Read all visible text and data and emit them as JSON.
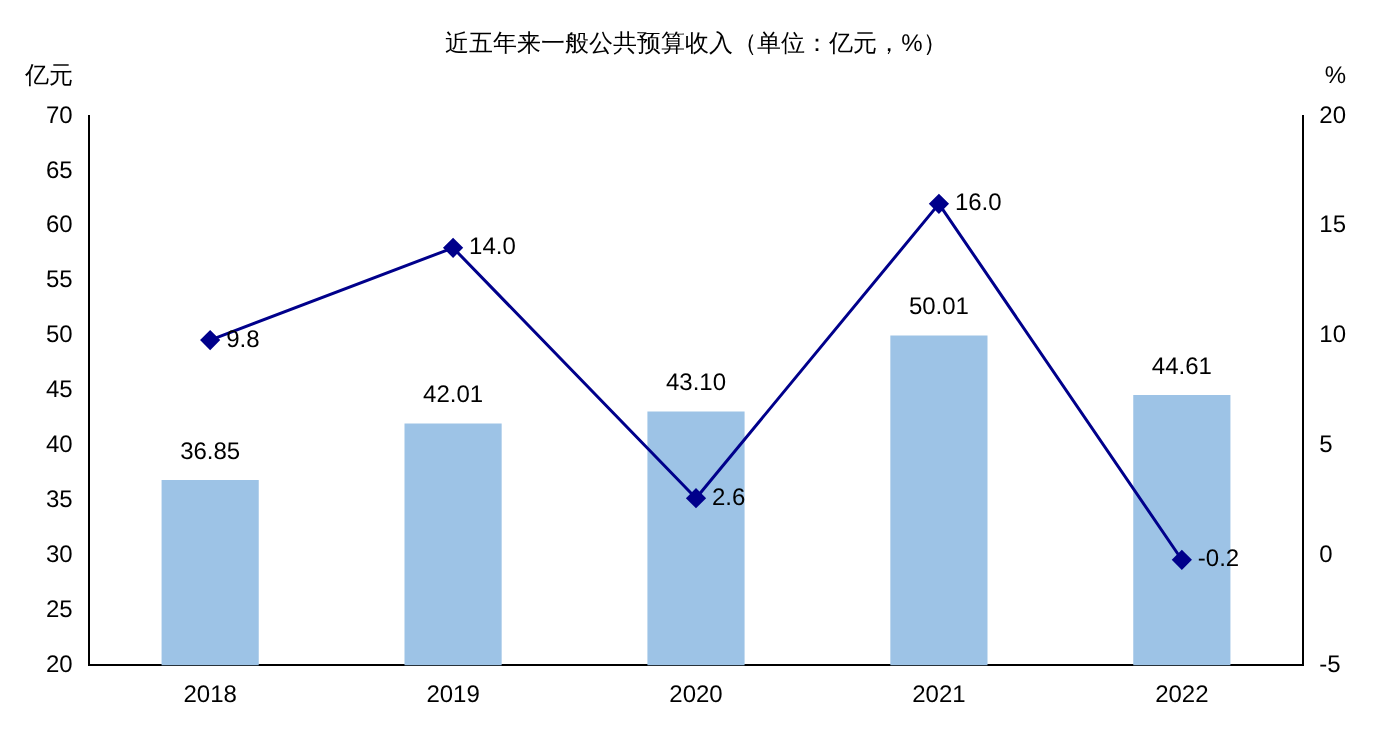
{
  "chart_data": {
    "type": "bar",
    "title": "近五年来一般公共预算收入（单位：亿元，%）",
    "ylabel": "亿元",
    "y2label": "%",
    "categories": [
      "2018",
      "2019",
      "2020",
      "2021",
      "2022"
    ],
    "series": [
      {
        "color": "#9dc3e6",
        "values": [
          36.85,
          42.01,
          43.1,
          50.01,
          44.61
        ],
        "value_labels": [
          "36.85",
          "42.01",
          "43.10",
          "50.01",
          "44.61"
        ]
      },
      {
        "type": "line",
        "axis": "y2",
        "color": "#00008b",
        "values": [
          9.8,
          14.0,
          2.6,
          16.0,
          -0.2
        ],
        "value_labels": [
          "9.8",
          "14.0",
          "2.6",
          "16.0",
          "-0.2"
        ]
      }
    ],
    "ylim": [
      20,
      70
    ],
    "yticks": [
      20,
      25,
      30,
      35,
      40,
      45,
      50,
      55,
      60,
      65,
      70
    ],
    "y2lim": [
      -5,
      20
    ],
    "y2ticks": [
      -5,
      0,
      5,
      10,
      15,
      20
    ],
    "marker": "diamond",
    "line_style": "solid",
    "grid": false,
    "legend": false
  }
}
